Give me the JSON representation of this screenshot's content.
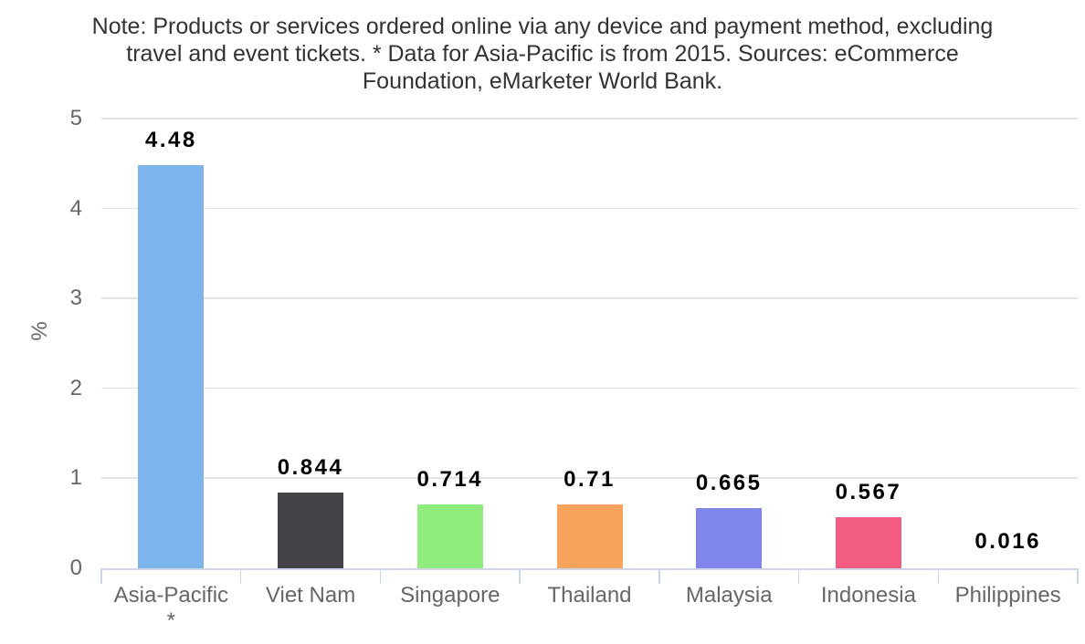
{
  "note": {
    "lines": [
      "Note: Products or services ordered online via any device and payment method, excluding",
      "travel and event tickets. * Data for Asia-Pacific is from 2015. Sources: eCommerce",
      "Foundation, eMarketer World Bank."
    ]
  },
  "chart_data": {
    "type": "bar",
    "title": "Note: Products or services ordered online via any device and payment method, excluding travel and event tickets. * Data for Asia-Pacific is from 2015. Sources: eCommerce Foundation, eMarketer World Bank.",
    "categories": [
      "Asia-Pacific *",
      "Viet Nam",
      "Singapore",
      "Thailand",
      "Malaysia",
      "Indonesia",
      "Philippines"
    ],
    "category_label_lines": [
      [
        "Asia-Pacific",
        "*"
      ],
      [
        "Viet Nam"
      ],
      [
        "Singapore"
      ],
      [
        "Thailand"
      ],
      [
        "Malaysia"
      ],
      [
        "Indonesia"
      ],
      [
        "Philippines"
      ]
    ],
    "values": [
      4.48,
      0.844,
      0.714,
      0.71,
      0.665,
      0.567,
      0.016
    ],
    "value_labels": [
      "4.48",
      "0.844",
      "0.714",
      "0.71",
      "0.665",
      "0.567",
      "0.016"
    ],
    "bar_colors": [
      "#7cb5ec",
      "#434348",
      "#90ed7d",
      "#f7a35c",
      "#8085e9",
      "#f15c80",
      null
    ],
    "xlabel": "",
    "ylabel": "%",
    "ylim": [
      0,
      5
    ],
    "yticks": [
      0,
      1,
      2,
      3,
      4,
      5
    ],
    "grid": true,
    "legend": "none",
    "colors": {
      "title_text": "#333333",
      "axis_label_text": "#666666",
      "data_label_text": "#000000",
      "grid_line": "#e3e3e3",
      "axis_line": "#ccd6eb",
      "background": "#ffffff"
    }
  }
}
